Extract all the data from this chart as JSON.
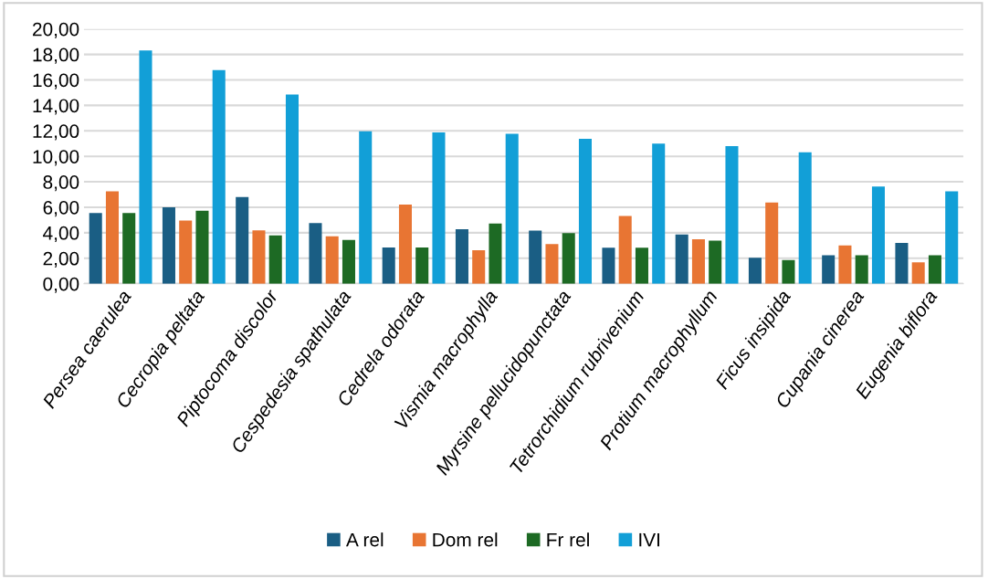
{
  "chart_data": {
    "type": "bar",
    "categories": [
      "Persea caerulea",
      "Cecropia peltata",
      "Piptocoma discolor",
      "Cespedesia spathulata",
      "Cedrela odorata",
      "Vismia macrophylla",
      "Myrsine pellucidopunctata",
      "Tetrorchidium rubrivenium",
      "Protium macrophyllum",
      "Ficus insipida",
      "Cupania cinerea",
      "Eugenia biflora"
    ],
    "series": [
      {
        "name": "A rel",
        "color": "#1a5e84",
        "values": [
          5.55,
          6.0,
          6.8,
          4.77,
          2.84,
          4.27,
          4.17,
          2.82,
          3.87,
          2.04,
          2.23,
          3.2
        ]
      },
      {
        "name": "Dom rel",
        "color": "#e87533",
        "values": [
          7.25,
          4.95,
          4.18,
          3.72,
          6.22,
          2.63,
          3.12,
          5.32,
          3.49,
          6.37,
          3.01,
          1.67
        ]
      },
      {
        "name": "Fr rel",
        "color": "#1d6a24",
        "values": [
          5.55,
          5.73,
          3.79,
          3.43,
          2.84,
          4.73,
          3.98,
          2.82,
          3.39,
          1.85,
          2.23,
          2.23
        ]
      },
      {
        "name": "IVI",
        "color": "#129fd7",
        "values": [
          18.32,
          16.77,
          14.86,
          11.97,
          11.87,
          11.77,
          11.37,
          10.99,
          10.81,
          10.32,
          7.63,
          7.26
        ]
      }
    ],
    "ylim": [
      0,
      20
    ],
    "yticks": [
      {
        "value": 0,
        "label": "0,00"
      },
      {
        "value": 2,
        "label": "2,00"
      },
      {
        "value": 4,
        "label": "4,00"
      },
      {
        "value": 6,
        "label": "6,00"
      },
      {
        "value": 8,
        "label": "8,00"
      },
      {
        "value": 10,
        "label": "10,00"
      },
      {
        "value": 12,
        "label": "12,00"
      },
      {
        "value": 14,
        "label": "14,00"
      },
      {
        "value": 16,
        "label": "16,00"
      },
      {
        "value": 18,
        "label": "18,00"
      },
      {
        "value": 20,
        "label": "20,00"
      }
    ],
    "grid": "y",
    "legend": "bottom"
  }
}
